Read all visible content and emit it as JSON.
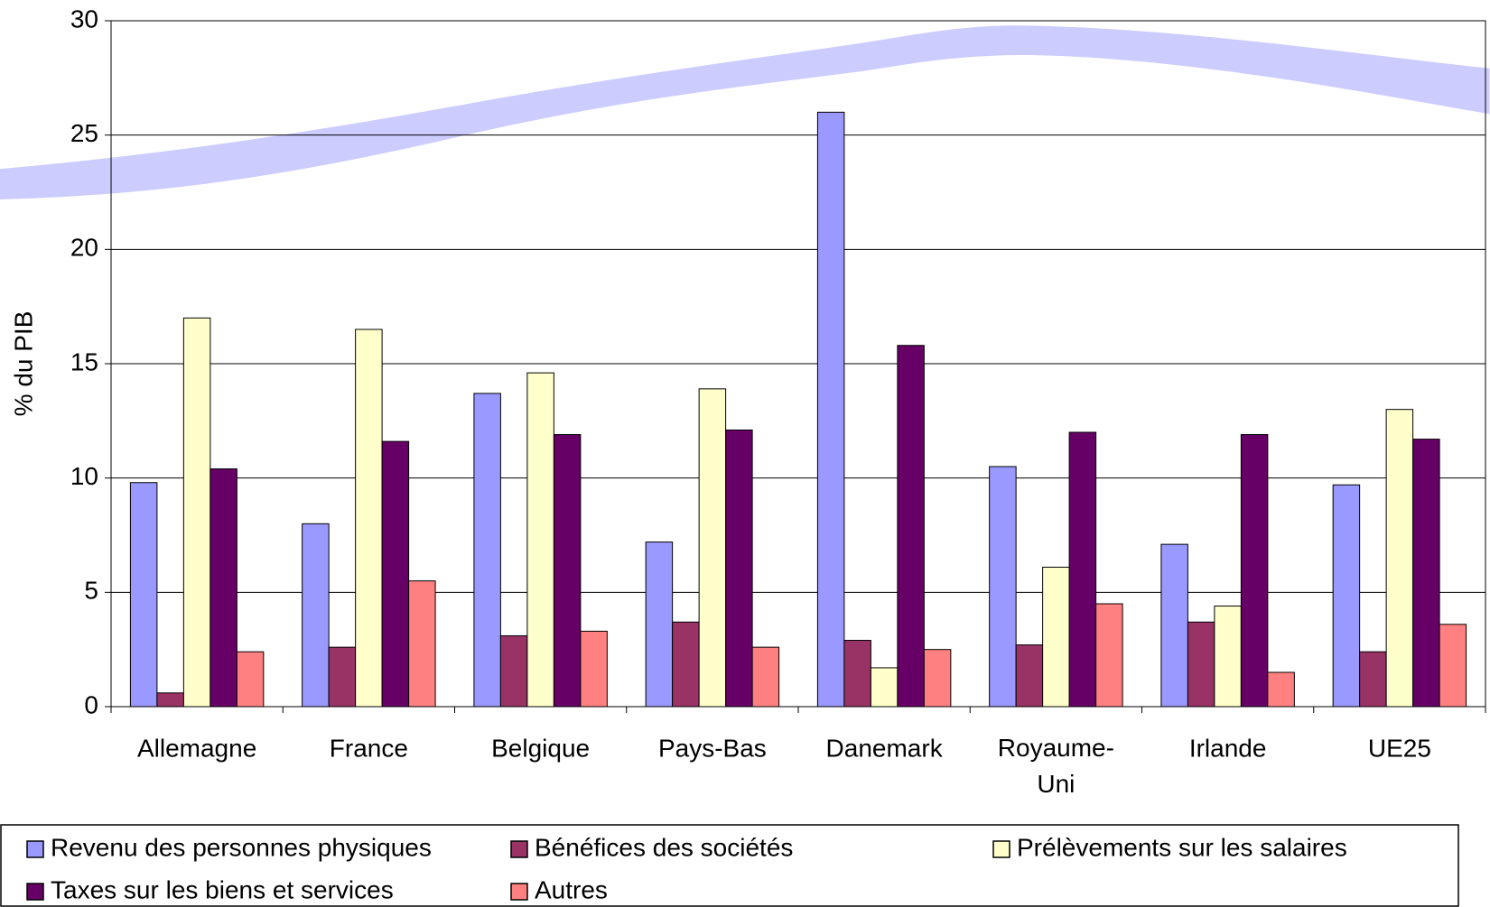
{
  "chart_data": {
    "type": "bar",
    "y_label": "% du PIB",
    "categories": [
      "Allemagne",
      "France",
      "Belgique",
      "Pays-Bas",
      "Danemark",
      "Royaume-Uni",
      "Irlande",
      "UE25"
    ],
    "series": [
      {
        "name": "Revenu des personnes physiques",
        "color": "#9999ff",
        "values": [
          9.8,
          8.0,
          13.7,
          7.2,
          26.0,
          10.5,
          7.1,
          9.7
        ]
      },
      {
        "name": "Bénéfices des sociétés",
        "color": "#993366",
        "values": [
          0.6,
          2.6,
          3.1,
          3.7,
          2.9,
          2.7,
          3.7,
          2.4
        ]
      },
      {
        "name": "Prélèvements sur les salaires",
        "color": "#ffffcc",
        "values": [
          17.0,
          16.5,
          14.6,
          13.9,
          1.7,
          6.1,
          4.4,
          13.0
        ]
      },
      {
        "name": "Taxes sur les biens et services",
        "color": "#660066",
        "values": [
          10.4,
          11.6,
          11.9,
          12.1,
          15.8,
          12.0,
          11.9,
          11.7
        ]
      },
      {
        "name": "Autres",
        "color": "#ff8080",
        "values": [
          2.4,
          5.5,
          3.3,
          2.6,
          2.5,
          4.5,
          1.5,
          3.6
        ]
      }
    ],
    "ylim": [
      0,
      30
    ],
    "yticks": [
      0,
      5,
      10,
      15,
      20,
      25,
      30
    ],
    "grid": true,
    "legend": "bottom"
  }
}
